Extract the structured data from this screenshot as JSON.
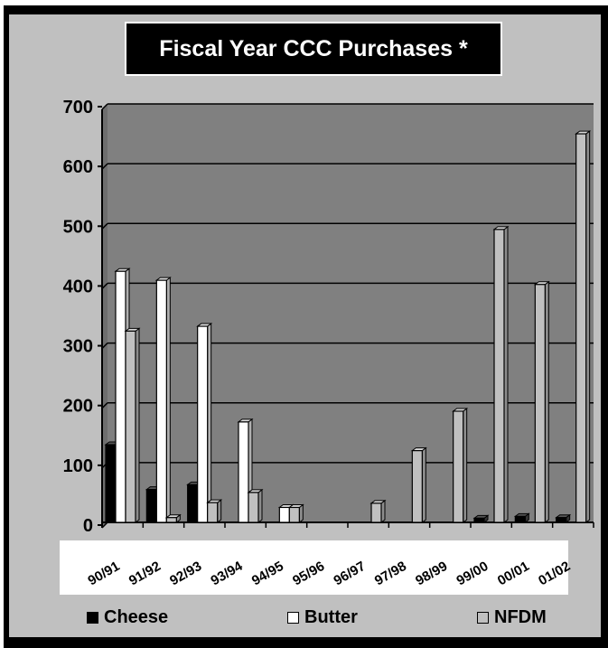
{
  "chart_data": {
    "type": "bar",
    "title": "Fiscal Year CCC Purchases *",
    "xlabel": "",
    "ylabel": "",
    "ylim": [
      0,
      700
    ],
    "yticks": [
      0,
      100,
      200,
      300,
      400,
      500,
      600,
      700
    ],
    "categories": [
      "90/91",
      "91/92",
      "92/93",
      "93/94",
      "94/95",
      "95/96",
      "96/97",
      "97/98",
      "98/99",
      "99/00",
      "00/01",
      "01/02"
    ],
    "series": [
      {
        "name": "Cheese",
        "color": "#000000",
        "values": [
          130,
          55,
          63,
          0,
          0,
          0,
          0,
          0,
          0,
          7,
          10,
          8
        ]
      },
      {
        "name": "Butter",
        "color": "#ffffff",
        "values": [
          420,
          405,
          328,
          168,
          25,
          0,
          0,
          0,
          0,
          0,
          0,
          0
        ]
      },
      {
        "name": "NFDM",
        "color": "#c0c0c0",
        "values": [
          320,
          8,
          33,
          50,
          25,
          0,
          32,
          120,
          186,
          490,
          398,
          650
        ]
      }
    ],
    "grid": true,
    "legend": "bottom"
  }
}
